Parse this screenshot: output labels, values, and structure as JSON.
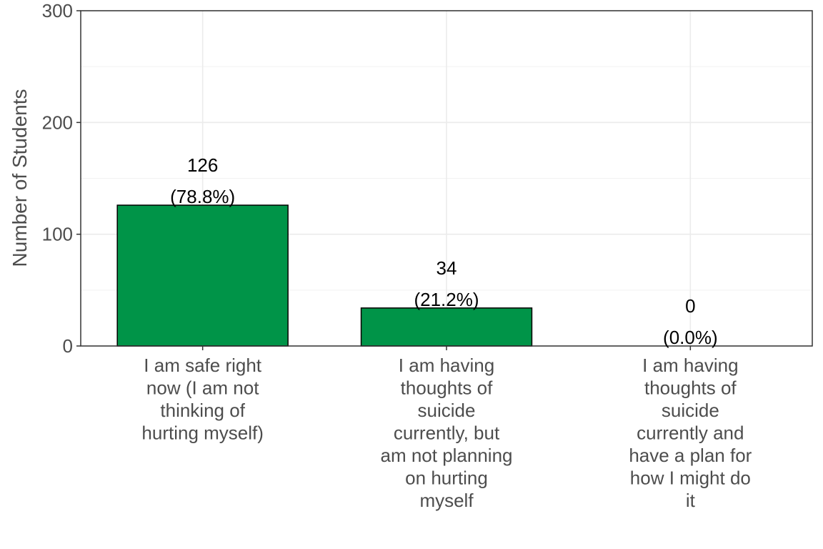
{
  "chart_data": {
    "type": "bar",
    "title": "",
    "xlabel": "",
    "ylabel": "Number of Students",
    "ylim": [
      0,
      300
    ],
    "yticks": [
      0,
      100,
      200,
      300
    ],
    "grid": true,
    "bar_color": "#009448",
    "categories": [
      [
        "I am safe right",
        "now (I am not",
        "thinking of",
        "hurting myself)"
      ],
      [
        "I am having",
        "thoughts of",
        "suicide",
        "currently, but",
        "am not planning",
        "on hurting",
        "myself"
      ],
      [
        "I am having",
        "thoughts of",
        "suicide",
        "currently and",
        "have a plan for",
        "how I might do",
        "it"
      ]
    ],
    "values": [
      126,
      34,
      0
    ],
    "labels": [
      [
        "126",
        "(78.8%)"
      ],
      [
        "34",
        "(21.2%)"
      ],
      [
        "0",
        "(0.0%)"
      ]
    ]
  }
}
